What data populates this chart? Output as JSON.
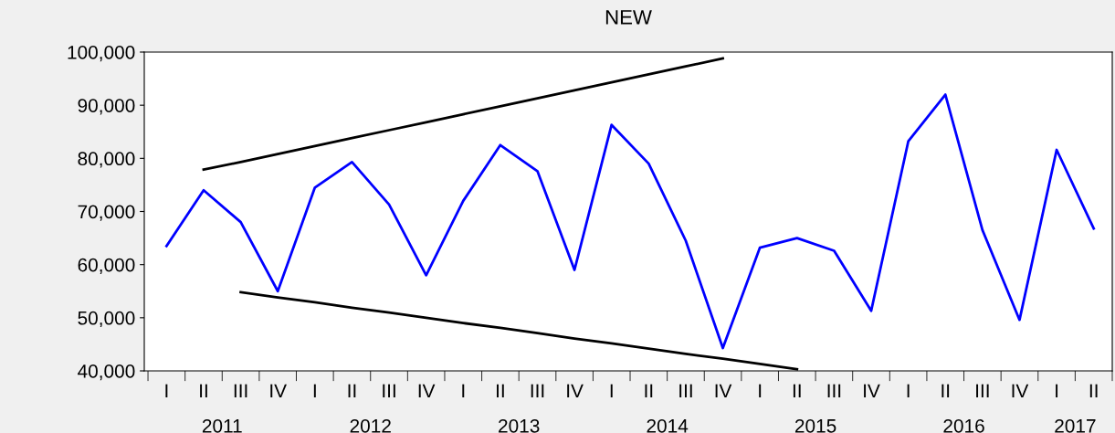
{
  "chart_data": {
    "type": "line",
    "title": "NEW",
    "categories": [
      "I",
      "II",
      "III",
      "IV",
      "I",
      "II",
      "III",
      "IV",
      "I",
      "II",
      "III",
      "IV",
      "I",
      "II",
      "III",
      "IV",
      "I",
      "II",
      "III",
      "IV",
      "I",
      "II",
      "III",
      "IV",
      "I",
      "II"
    ],
    "annotations": [
      "2011",
      "2012",
      "2013",
      "2014",
      "2015",
      "2016",
      "2017"
    ],
    "series": [
      {
        "color": "#0000ff",
        "values": [
          63500,
          74000,
          68000,
          55000,
          74500,
          79300,
          71300,
          58000,
          72000,
          82500,
          77600,
          59000,
          86300,
          79000,
          64500,
          44300,
          63200,
          65000,
          62600,
          51300,
          83200,
          92000,
          66500,
          49600,
          81600,
          66800
        ]
      },
      {
        "type": "line",
        "color": "#000000",
        "values": [
          null,
          77900,
          79300,
          80800,
          82300,
          83800,
          85300,
          86800,
          88300,
          89800,
          91300,
          92800,
          94300,
          95800,
          97300,
          98800,
          null,
          null,
          null,
          null,
          null,
          null,
          null,
          null,
          null,
          null
        ]
      },
      {
        "type": "line",
        "color": "#000000",
        "values": [
          null,
          null,
          54800,
          53800,
          52900,
          51900,
          51000,
          50000,
          49000,
          48100,
          47100,
          46100,
          45200,
          44200,
          43200,
          42300,
          41300,
          40300,
          null,
          null,
          null,
          null,
          null,
          null,
          null,
          null
        ]
      }
    ],
    "ylim": [
      40000,
      100000
    ],
    "yticks": [
      {
        "value": 40000,
        "label": "40,000"
      },
      {
        "value": 50000,
        "label": "50,000"
      },
      {
        "value": 60000,
        "label": "60,000"
      },
      {
        "value": 70000,
        "label": "70,000"
      },
      {
        "value": 80000,
        "label": "80,000"
      },
      {
        "value": 90000,
        "label": "90,000"
      },
      {
        "value": 100000,
        "label": "100,000"
      }
    ],
    "grid": false,
    "legend": false
  }
}
